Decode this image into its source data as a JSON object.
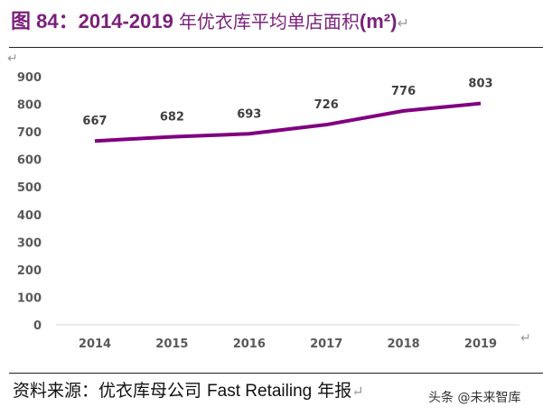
{
  "title": {
    "prefix": "图 ",
    "number": "84：2014-2019 ",
    "cn": "年优衣库平均单店面积",
    "unit": "(m²)"
  },
  "source": {
    "label": "资料来源：优衣库母公司 ",
    "en": "Fast Retailing",
    "suffix": " 年报"
  },
  "watermark": "头条 @未来智库",
  "chart_data": {
    "type": "line",
    "title": "2014-2019 年优衣库平均单店面积(m²)",
    "categories": [
      "2014",
      "2015",
      "2016",
      "2017",
      "2018",
      "2019"
    ],
    "series": [
      {
        "name": "平均单店面积",
        "values": [
          667,
          682,
          693,
          726,
          776,
          803
        ],
        "color": "#800080"
      }
    ],
    "ylim": [
      0,
      900
    ],
    "yticks": [
      0,
      100,
      200,
      300,
      400,
      500,
      600,
      700,
      800,
      900
    ],
    "grid": false
  }
}
